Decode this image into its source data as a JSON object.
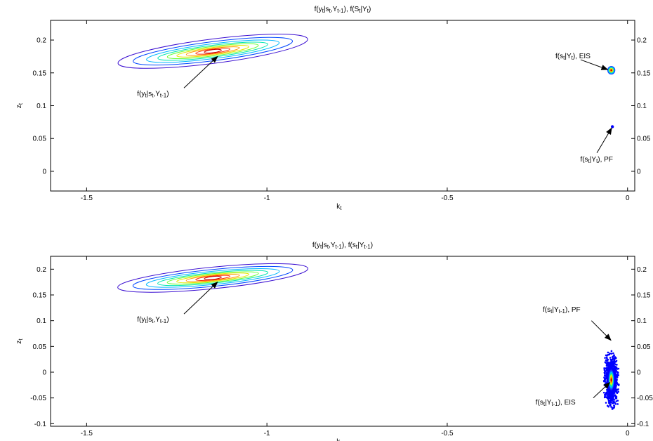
{
  "chart_data": [
    {
      "type": "contour",
      "title": [
        {
          "t": "f(y"
        },
        {
          "t": "t",
          "sub": true
        },
        {
          "t": "|s"
        },
        {
          "t": "t",
          "sub": true
        },
        {
          "t": ",Y"
        },
        {
          "t": "t-1",
          "sub": true
        },
        {
          "t": "), f(S"
        },
        {
          "t": "t",
          "sub": true
        },
        {
          "t": "|Y"
        },
        {
          "t": "t",
          "sub": true
        },
        {
          "t": ")"
        }
      ],
      "xlabel": {
        "main": "k",
        "sub": "t"
      },
      "ylabel": {
        "main": "z",
        "sub": "t"
      },
      "xlim": [
        -1.6,
        0.02
      ],
      "ylim": [
        -0.03,
        0.23
      ],
      "xticks": [
        -1.5,
        -1,
        -0.5,
        0
      ],
      "xtick_labels": [
        "-1.5",
        "-1",
        "-0.5",
        "0"
      ],
      "yticks": [
        0,
        0.05,
        0.1,
        0.15,
        0.2
      ],
      "ytick_labels": [
        "0",
        "0.05",
        "0.1",
        "0.15",
        "0.2"
      ],
      "likelihood": {
        "center": [
          -1.15,
          0.183
        ],
        "semi_major": 0.265,
        "semi_minor": 0.01,
        "tilt": -0.07
      },
      "contour_colors": [
        "#3b0fd1",
        "#0047ff",
        "#00b7ff",
        "#00e6b0",
        "#66ff33",
        "#e6e600",
        "#ff9900",
        "#ff2a00",
        "#c40000"
      ],
      "clusters": [
        {
          "name": "eis",
          "center": [
            -0.045,
            0.154
          ],
          "sx": 0.011,
          "sy": 0.0065,
          "style": "blob"
        },
        {
          "name": "pf",
          "center": [
            -0.042,
            0.068
          ],
          "sx": 0.0025,
          "sy": 0.0015,
          "style": "dot"
        }
      ],
      "annotations": [
        {
          "name": "likelihood-label",
          "anchor": "start",
          "text_at": [
            -1.36,
            0.115
          ],
          "arrow_from": [
            -1.23,
            0.127
          ],
          "arrow_to": [
            -1.137,
            0.175
          ],
          "parts": [
            {
              "t": "f(y"
            },
            {
              "t": "t",
              "sub": true
            },
            {
              "t": "|s"
            },
            {
              "t": "t",
              "sub": true
            },
            {
              "t": ",Y"
            },
            {
              "t": "t-1",
              "sub": true
            },
            {
              "t": ")"
            }
          ]
        },
        {
          "name": "eis-label",
          "anchor": "start",
          "text_at": [
            -0.2,
            0.172
          ],
          "arrow_from": [
            -0.13,
            0.17
          ],
          "arrow_to": [
            -0.055,
            0.155
          ],
          "parts": [
            {
              "t": "f(s"
            },
            {
              "t": "t",
              "sub": true
            },
            {
              "t": "|Y"
            },
            {
              "t": "t",
              "sub": true
            },
            {
              "t": "), EIS"
            }
          ]
        },
        {
          "name": "pf-label",
          "anchor": "start",
          "text_at": [
            -0.131,
            0.015
          ],
          "arrow_from": [
            -0.085,
            0.028
          ],
          "arrow_to": [
            -0.044,
            0.066
          ],
          "parts": [
            {
              "t": "f(s"
            },
            {
              "t": "t",
              "sub": true
            },
            {
              "t": "|Y"
            },
            {
              "t": "t",
              "sub": true
            },
            {
              "t": "), PF"
            }
          ]
        }
      ]
    },
    {
      "type": "contour",
      "title": [
        {
          "t": "f(y"
        },
        {
          "t": "t",
          "sub": true
        },
        {
          "t": "|s"
        },
        {
          "t": "t",
          "sub": true
        },
        {
          "t": ",Y"
        },
        {
          "t": "t-1",
          "sub": true
        },
        {
          "t": "), f(s"
        },
        {
          "t": "t",
          "sub": true
        },
        {
          "t": "|Y"
        },
        {
          "t": "t-1",
          "sub": true
        },
        {
          "t": ")"
        }
      ],
      "xlabel": {
        "main": "k",
        "sub": "t"
      },
      "ylabel": {
        "main": "z",
        "sub": "t"
      },
      "xlim": [
        -1.6,
        0.02
      ],
      "ylim": [
        -0.105,
        0.225
      ],
      "xticks": [
        -1.5,
        -1,
        -0.5,
        0
      ],
      "xtick_labels": [
        "-1.5",
        "-1",
        "-0.5",
        "0"
      ],
      "yticks": [
        -0.1,
        -0.05,
        0,
        0.05,
        0.1,
        0.15,
        0.2
      ],
      "ytick_labels": [
        "-0.1",
        "-0.05",
        "0",
        "0.05",
        "0.1",
        "0.15",
        "0.2"
      ],
      "likelihood": {
        "center": [
          -1.15,
          0.183
        ],
        "semi_major": 0.265,
        "semi_minor": 0.01,
        "tilt": -0.07
      },
      "contour_colors": [
        "#3b0fd1",
        "#0047ff",
        "#00b7ff",
        "#00e6b0",
        "#66ff33",
        "#e6e600",
        "#ff9900",
        "#ff2a00",
        "#c40000"
      ],
      "clusters": [
        {
          "name": "prior-cloud",
          "center": [
            -0.045,
            -0.015
          ],
          "sx": 0.016,
          "sy": 0.042,
          "style": "cloud"
        }
      ],
      "annotations": [
        {
          "name": "likelihood-label",
          "anchor": "start",
          "text_at": [
            -1.36,
            0.098
          ],
          "arrow_from": [
            -1.23,
            0.113
          ],
          "arrow_to": [
            -1.137,
            0.175
          ],
          "parts": [
            {
              "t": "f(y"
            },
            {
              "t": "t",
              "sub": true
            },
            {
              "t": "|s"
            },
            {
              "t": "t",
              "sub": true
            },
            {
              "t": ",Y"
            },
            {
              "t": "t-1",
              "sub": true
            },
            {
              "t": ")"
            }
          ]
        },
        {
          "name": "pf-label",
          "anchor": "start",
          "text_at": [
            -0.235,
            0.117
          ],
          "arrow_from": [
            -0.1,
            0.1
          ],
          "arrow_to": [
            -0.046,
            0.062
          ],
          "parts": [
            {
              "t": "f(s"
            },
            {
              "t": "t",
              "sub": true
            },
            {
              "t": "|Y"
            },
            {
              "t": "t-1",
              "sub": true
            },
            {
              "t": "), PF"
            }
          ]
        },
        {
          "name": "eis-label",
          "anchor": "start",
          "text_at": [
            -0.255,
            -0.063
          ],
          "arrow_from": [
            -0.095,
            -0.05
          ],
          "arrow_to": [
            -0.049,
            -0.02
          ],
          "parts": [
            {
              "t": "f(s"
            },
            {
              "t": "t",
              "sub": true
            },
            {
              "t": "|Y"
            },
            {
              "t": "t-1",
              "sub": true
            },
            {
              "t": "), EIS"
            }
          ]
        }
      ]
    }
  ]
}
